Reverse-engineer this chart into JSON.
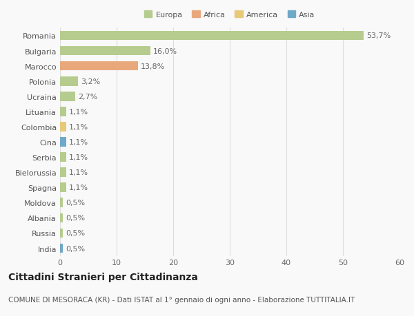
{
  "categories": [
    "Romania",
    "Bulgaria",
    "Marocco",
    "Polonia",
    "Ucraina",
    "Lituania",
    "Colombia",
    "Cina",
    "Serbia",
    "Bielorussia",
    "Spagna",
    "Moldova",
    "Albania",
    "Russia",
    "India"
  ],
  "values": [
    53.7,
    16.0,
    13.8,
    3.2,
    2.7,
    1.1,
    1.1,
    1.1,
    1.1,
    1.1,
    1.1,
    0.5,
    0.5,
    0.5,
    0.5
  ],
  "labels": [
    "53,7%",
    "16,0%",
    "13,8%",
    "3,2%",
    "2,7%",
    "1,1%",
    "1,1%",
    "1,1%",
    "1,1%",
    "1,1%",
    "1,1%",
    "0,5%",
    "0,5%",
    "0,5%",
    "0,5%"
  ],
  "colors": [
    "#b5cc8e",
    "#b5cc8e",
    "#e8a87c",
    "#b5cc8e",
    "#b5cc8e",
    "#b5cc8e",
    "#e8c97a",
    "#6fa8c8",
    "#b5cc8e",
    "#b5cc8e",
    "#b5cc8e",
    "#b5cc8e",
    "#b5cc8e",
    "#b5cc8e",
    "#6fa8c8"
  ],
  "continent_colors": {
    "Europa": "#b5cc8e",
    "Africa": "#e8a87c",
    "America": "#e8c97a",
    "Asia": "#6fa8c8"
  },
  "xlim": [
    0,
    60
  ],
  "xticks": [
    0,
    10,
    20,
    30,
    40,
    50,
    60
  ],
  "title": "Cittadini Stranieri per Cittadinanza",
  "subtitle": "COMUNE DI MESORACA (KR) - Dati ISTAT al 1° gennaio di ogni anno - Elaborazione TUTTITALIA.IT",
  "bg_color": "#f9f9f9",
  "grid_color": "#dddddd",
  "title_fontsize": 10,
  "subtitle_fontsize": 7.5,
  "label_fontsize": 8,
  "tick_fontsize": 8
}
